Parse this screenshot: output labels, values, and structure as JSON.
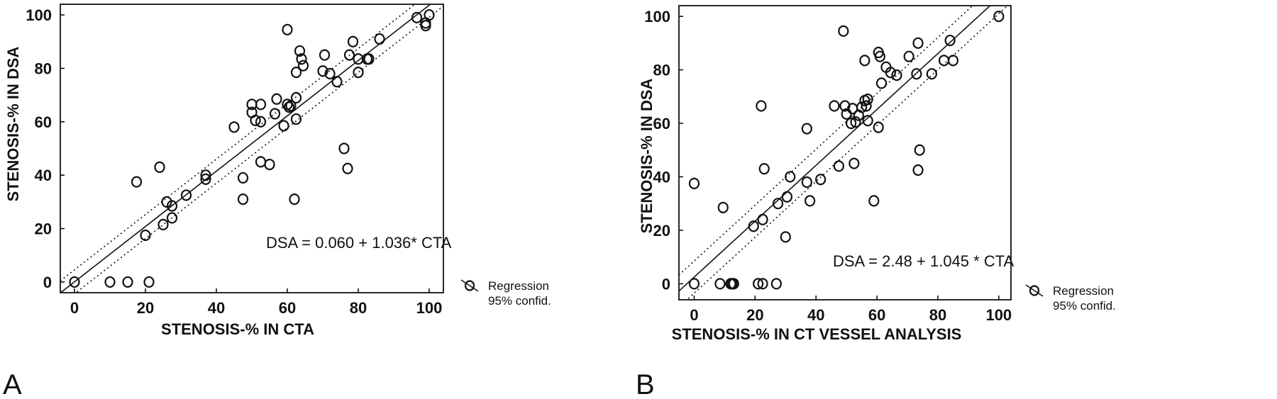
{
  "chart_data": [
    {
      "type": "scatter",
      "panel_label": "A",
      "xlabel": "STENOSIS-% IN CTA",
      "ylabel": "STENOSIS-% IN DSA",
      "xlim": [
        -4,
        104
      ],
      "ylim": [
        -4,
        104
      ],
      "xticks": [
        "0",
        "20",
        "40",
        "60",
        "80",
        "100"
      ],
      "yticks": [
        "0",
        "20",
        "40",
        "60",
        "80",
        "100"
      ],
      "annotation": "DSA = 0.060 + 1.036* CTA",
      "regression": {
        "intercept": 0.06,
        "slope": 1.036
      },
      "confidence_band": 4.5,
      "legend": [
        "Regression",
        "95% confid."
      ],
      "points": [
        [
          0,
          0
        ],
        [
          10,
          0
        ],
        [
          15,
          0
        ],
        [
          21,
          0
        ],
        [
          17.5,
          37.5
        ],
        [
          20,
          17.5
        ],
        [
          24,
          43
        ],
        [
          25,
          21.5
        ],
        [
          26,
          30
        ],
        [
          27.5,
          24
        ],
        [
          27.5,
          28.5
        ],
        [
          31.5,
          32.5
        ],
        [
          37,
          40
        ],
        [
          37,
          38.5
        ],
        [
          45,
          58
        ],
        [
          47.5,
          39
        ],
        [
          47.5,
          31
        ],
        [
          50,
          66.5
        ],
        [
          50,
          63.5
        ],
        [
          51,
          60.5
        ],
        [
          52.5,
          45
        ],
        [
          52.5,
          66.5
        ],
        [
          52.5,
          60
        ],
        [
          55,
          44
        ],
        [
          56.5,
          63
        ],
        [
          57,
          68.5
        ],
        [
          59,
          58.5
        ],
        [
          60,
          94.5
        ],
        [
          60,
          66.5
        ],
        [
          60.5,
          65.5
        ],
        [
          61,
          66
        ],
        [
          62,
          31
        ],
        [
          62.5,
          61
        ],
        [
          62.5,
          69
        ],
        [
          62.5,
          78.5
        ],
        [
          63.5,
          86.5
        ],
        [
          64,
          83.5
        ],
        [
          64.5,
          81
        ],
        [
          70,
          79
        ],
        [
          70.5,
          85
        ],
        [
          72,
          78
        ],
        [
          74,
          75
        ],
        [
          76,
          50
        ],
        [
          77,
          42.5
        ],
        [
          77.5,
          85
        ],
        [
          78.5,
          90
        ],
        [
          80,
          78.5
        ],
        [
          80,
          83.5
        ],
        [
          82.5,
          83.5
        ],
        [
          83,
          83.5
        ],
        [
          86,
          91
        ],
        [
          96.5,
          99
        ],
        [
          99,
          97
        ],
        [
          99,
          96
        ],
        [
          100,
          100
        ]
      ]
    },
    {
      "type": "scatter",
      "panel_label": "B",
      "xlabel": "STENOSIS-% IN CT VESSEL ANALYSIS",
      "ylabel": "STENOSIS-% IN DSA",
      "xlim": [
        -5,
        104
      ],
      "ylim": [
        -6,
        104
      ],
      "xticks": [
        "0",
        "20",
        "40",
        "60",
        "80",
        "100"
      ],
      "yticks": [
        "0",
        "20",
        "40",
        "60",
        "80",
        "100"
      ],
      "annotation": "DSA = 2.48 + 1.045 * CTA",
      "regression": {
        "intercept": 2.48,
        "slope": 1.045
      },
      "confidence_band": 6,
      "legend": [
        "Regression",
        "95% confid."
      ],
      "points": [
        [
          0,
          0
        ],
        [
          0,
          37.5
        ],
        [
          8.5,
          0
        ],
        [
          9.5,
          28.5
        ],
        [
          12,
          0
        ],
        [
          12.5,
          0
        ],
        [
          13,
          0
        ],
        [
          19.5,
          21.5
        ],
        [
          21,
          0
        ],
        [
          22,
          66.5
        ],
        [
          22.5,
          0
        ],
        [
          22.5,
          24
        ],
        [
          23,
          43
        ],
        [
          27,
          0
        ],
        [
          27.5,
          30
        ],
        [
          30,
          17.5
        ],
        [
          30.5,
          32.5
        ],
        [
          31.5,
          40
        ],
        [
          37,
          38
        ],
        [
          37,
          58
        ],
        [
          38,
          31
        ],
        [
          41.5,
          39
        ],
        [
          46,
          66.5
        ],
        [
          47.5,
          44
        ],
        [
          49,
          94.5
        ],
        [
          49.5,
          66.5
        ],
        [
          50,
          63.5
        ],
        [
          51.5,
          60
        ],
        [
          52,
          65.5
        ],
        [
          52.5,
          45
        ],
        [
          53,
          60.5
        ],
        [
          54,
          63
        ],
        [
          55,
          66
        ],
        [
          56,
          68.5
        ],
        [
          56,
          83.5
        ],
        [
          56.5,
          66.5
        ],
        [
          57,
          69
        ],
        [
          57,
          61
        ],
        [
          59,
          31
        ],
        [
          60.5,
          58.5
        ],
        [
          60.5,
          86.5
        ],
        [
          61,
          85
        ],
        [
          61.5,
          75
        ],
        [
          63,
          81
        ],
        [
          64.5,
          79
        ],
        [
          66.5,
          78
        ],
        [
          70.5,
          85
        ],
        [
          73,
          78.5
        ],
        [
          73.5,
          42.5
        ],
        [
          73.5,
          90
        ],
        [
          74,
          50
        ],
        [
          78,
          78.5
        ],
        [
          82,
          83.5
        ],
        [
          84,
          91
        ],
        [
          85,
          83.5
        ],
        [
          100,
          100
        ]
      ]
    }
  ]
}
